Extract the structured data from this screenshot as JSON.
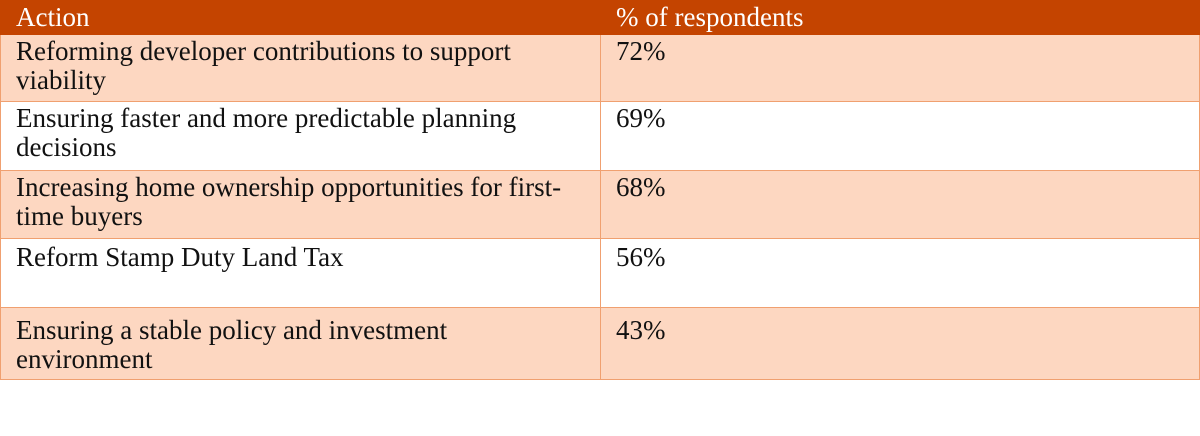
{
  "table": {
    "headers": {
      "action": "Action",
      "percent": "% of respondents"
    },
    "rows": [
      {
        "action": "Reforming developer contributions to support viability",
        "percent": "72%"
      },
      {
        "action": "Ensuring faster and more predictable planning decisions",
        "percent": "69%"
      },
      {
        "action": "Increasing home ownership opportunities for first-time buyers",
        "percent": "68%"
      },
      {
        "action": "Reform Stamp Duty Land Tax",
        "percent": "56%"
      },
      {
        "action": "Ensuring a stable policy and investment environment",
        "percent": "43%"
      }
    ]
  },
  "colors": {
    "header_bg": "#c44400",
    "row_shade": "#fdd7c1",
    "border": "#f0a070"
  }
}
